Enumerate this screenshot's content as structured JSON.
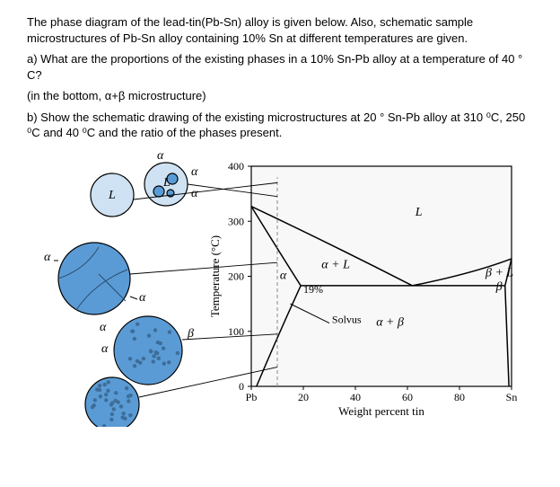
{
  "problem": {
    "intro": "The phase diagram of the lead-tin(Pb-Sn) alloy is given below. Also, schematic sample microstructures of Pb-Sn alloy containing 10% Sn at different temperatures are given.",
    "partA": "a) What are the proportions of the existing phases in a 10% Sn-Pb alloy at a temperature of 40 ° C?",
    "note": "(in the bottom, α+β microstructure)",
    "partB": "b) Show the schematic drawing of the existing microstructures at 20 ° Sn-Pb alloy at 310 ⁰C, 250 ⁰C and 40 ⁰C and the ratio of the phases present."
  },
  "chart": {
    "type": "phase-diagram",
    "x_label": "Weight percent tin",
    "y_label": "Temperature (°C)",
    "x_ticks": [
      "Pb",
      "20",
      "40",
      "60",
      "80",
      "Sn"
    ],
    "y_ticks": [
      "0",
      "100",
      "200",
      "300",
      "400"
    ],
    "xlim": [
      0,
      100
    ],
    "ylim": [
      0,
      400
    ],
    "regions": {
      "L": "L",
      "alpha_L": "α + L",
      "beta_L": "β + L",
      "alpha": "α",
      "beta": "β",
      "alpha_beta": "α + β",
      "solvus": "Solvus",
      "nineteen": "19%"
    },
    "colors": {
      "axis": "#000000",
      "grid": "#d0d0d0",
      "line": "#000000",
      "comp_line": "#888888",
      "fill_alpha": "#5b9bd5",
      "fill_L": "#cfe2f3",
      "fill_dark": "#3d6d99",
      "bg": "#f8f8f8"
    },
    "eutectic_T": 183,
    "eutectic_C": 61.9,
    "Pb_melt": 327,
    "Sn_melt": 232,
    "alpha_max": 19,
    "beta_min": 97.5,
    "alpha_RT": 2,
    "beta_RT": 99
  },
  "micro": {
    "labels": {
      "alpha": "α",
      "beta": "β",
      "L": "L"
    }
  }
}
